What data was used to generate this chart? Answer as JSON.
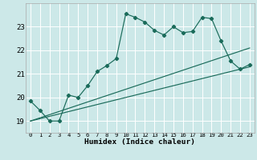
{
  "xlabel": "Humidex (Indice chaleur)",
  "ylabel": "",
  "bg_color": "#cce8e8",
  "line_color": "#1a6b5a",
  "grid_color": "#ffffff",
  "xlim": [
    -0.5,
    23.5
  ],
  "ylim": [
    18.5,
    24.0
  ],
  "yticks": [
    19,
    20,
    21,
    22,
    23
  ],
  "xticks": [
    0,
    1,
    2,
    3,
    4,
    5,
    6,
    7,
    8,
    9,
    10,
    11,
    12,
    13,
    14,
    15,
    16,
    17,
    18,
    19,
    20,
    21,
    22,
    23
  ],
  "line1_x": [
    0,
    1,
    2,
    3,
    4,
    5,
    6,
    7,
    8,
    9,
    10,
    11,
    12,
    13,
    14,
    15,
    16,
    17,
    18,
    19,
    20,
    21,
    22,
    23
  ],
  "line1_y": [
    19.85,
    19.45,
    19.0,
    19.0,
    20.1,
    20.0,
    20.5,
    21.1,
    21.35,
    21.65,
    23.55,
    23.4,
    23.2,
    22.85,
    22.65,
    23.0,
    22.75,
    22.8,
    23.4,
    23.35,
    22.4,
    21.55,
    21.2,
    21.4
  ],
  "line2_x": [
    0,
    23
  ],
  "line2_y": [
    19.0,
    21.3
  ],
  "line3_x": [
    0,
    23
  ],
  "line3_y": [
    19.0,
    22.1
  ]
}
